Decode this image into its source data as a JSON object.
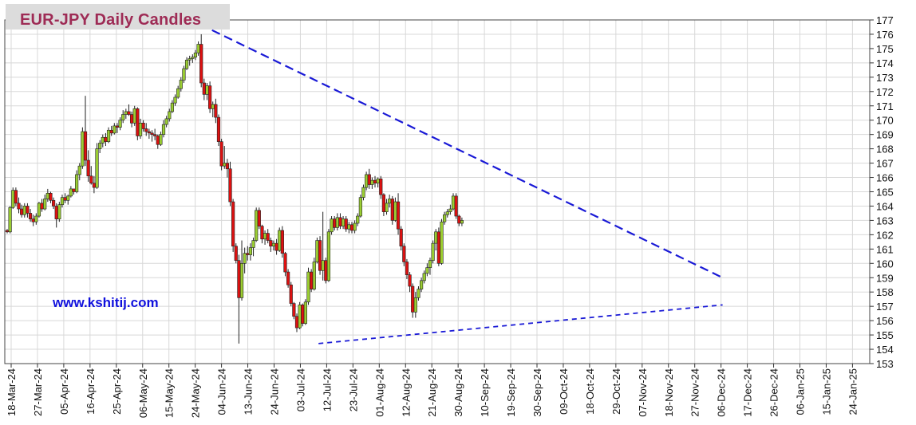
{
  "colors": {
    "title": "#9e2b55",
    "title_bg": "#dcdcdc",
    "watermark": "#1010dd",
    "up_candle": "#9acd32",
    "down_candle": "#dd1111",
    "trendline": "#1a1ad6",
    "grid": "#d8d8d8"
  },
  "chart_data": {
    "type": "candlestick",
    "title": "EUR-JPY Daily  Candles",
    "watermark": "www.kshitij.com",
    "y_axis": {
      "position": "right",
      "min": 153,
      "max": 177,
      "step": 1
    },
    "ticks_y": [
      177,
      176,
      175,
      174,
      173,
      172,
      171,
      170,
      169,
      168,
      167,
      166,
      165,
      164,
      163,
      162,
      161,
      160,
      159,
      158,
      157,
      156,
      155,
      154,
      153
    ],
    "x_axis_labels": [
      "18-Mar-24",
      "27-Mar-24",
      "05-Apr-24",
      "16-Apr-24",
      "25-Apr-24",
      "06-May-24",
      "15-May-24",
      "24-May-24",
      "04-Jun-24",
      "13-Jun-24",
      "24-Jun-24",
      "03-Jul-24",
      "12-Jul-24",
      "23-Jul-24",
      "01-Aug-24",
      "12-Aug-24",
      "21-Aug-24",
      "30-Aug-24",
      "10-Sep-24",
      "19-Sep-24",
      "30-Sep-24",
      "09-Oct-24",
      "18-Oct-24",
      "29-Oct-24",
      "07-Nov-24",
      "18-Nov-24",
      "27-Nov-24",
      "06-Dec-24",
      "17-Dec-24",
      "26-Dec-24",
      "06-Jan-25",
      "15-Jan-25",
      "24-Jan-25"
    ],
    "grid": true,
    "trendlines": [
      {
        "name": "resistance",
        "style": "dashed",
        "start": {
          "x": 66.5,
          "y": 176.7
        },
        "end": {
          "x": 247,
          "y": 159.0
        }
      },
      {
        "name": "support",
        "style": "dashed",
        "start": {
          "x": 107.5,
          "y": 154.4
        },
        "end": {
          "x": 247,
          "y": 157.1
        }
      }
    ],
    "candles": [
      [
        162.3,
        162.4,
        162.1,
        162.2
      ],
      [
        162.2,
        164.0,
        162.1,
        163.9
      ],
      [
        163.9,
        165.3,
        163.8,
        165.1
      ],
      [
        165.1,
        165.3,
        164.0,
        164.2
      ],
      [
        164.2,
        164.6,
        163.5,
        163.8
      ],
      [
        163.8,
        164.1,
        163.2,
        163.4
      ],
      [
        163.4,
        164.2,
        163.2,
        164.0
      ],
      [
        164.0,
        164.2,
        163.2,
        163.5
      ],
      [
        163.5,
        163.8,
        162.9,
        163.1
      ],
      [
        163.1,
        163.4,
        162.6,
        162.9
      ],
      [
        162.9,
        163.5,
        162.7,
        163.3
      ],
      [
        163.3,
        164.3,
        163.2,
        164.2
      ],
      [
        164.2,
        164.5,
        163.6,
        163.8
      ],
      [
        163.8,
        164.8,
        163.7,
        164.5
      ],
      [
        164.5,
        165.2,
        164.3,
        164.9
      ],
      [
        164.9,
        165.0,
        164.2,
        164.4
      ],
      [
        164.4,
        164.6,
        163.8,
        164.0
      ],
      [
        164.0,
        164.2,
        162.5,
        163.1
      ],
      [
        163.1,
        164.3,
        162.9,
        164.1
      ],
      [
        164.1,
        164.8,
        163.9,
        164.6
      ],
      [
        164.6,
        164.9,
        164.2,
        164.4
      ],
      [
        164.4,
        164.8,
        164.1,
        164.7
      ],
      [
        164.7,
        165.4,
        164.6,
        165.2
      ],
      [
        165.2,
        165.2,
        164.8,
        165.0
      ],
      [
        165.0,
        166.5,
        164.9,
        166.2
      ],
      [
        166.2,
        167.0,
        165.8,
        166.8
      ],
      [
        166.8,
        169.5,
        166.6,
        169.2
      ],
      [
        169.2,
        171.7,
        166.8,
        167.2
      ],
      [
        167.2,
        167.9,
        165.7,
        166.1
      ],
      [
        166.1,
        166.8,
        165.5,
        165.6
      ],
      [
        165.6,
        166.1,
        164.9,
        165.3
      ],
      [
        165.3,
        168.4,
        165.2,
        168.0
      ],
      [
        168.0,
        168.6,
        167.7,
        168.4
      ],
      [
        168.4,
        169.0,
        168.1,
        168.8
      ],
      [
        168.8,
        169.1,
        168.2,
        168.5
      ],
      [
        168.5,
        169.5,
        168.4,
        169.3
      ],
      [
        169.3,
        169.6,
        168.9,
        169.1
      ],
      [
        169.1,
        169.8,
        169.0,
        169.6
      ],
      [
        169.6,
        169.8,
        169.1,
        169.5
      ],
      [
        169.5,
        170.2,
        169.3,
        170.0
      ],
      [
        170.0,
        170.7,
        169.8,
        170.4
      ],
      [
        170.4,
        170.8,
        170.1,
        170.6
      ],
      [
        170.6,
        171.1,
        170.3,
        170.4
      ],
      [
        170.4,
        170.6,
        169.5,
        169.8
      ],
      [
        169.8,
        171.0,
        169.6,
        170.8
      ],
      [
        170.8,
        170.9,
        168.6,
        168.9
      ],
      [
        168.9,
        170.1,
        168.7,
        169.8
      ],
      [
        169.8,
        170.0,
        169.2,
        169.4
      ],
      [
        169.4,
        169.8,
        168.9,
        169.2
      ],
      [
        169.2,
        169.4,
        168.7,
        169.1
      ],
      [
        169.1,
        169.3,
        168.5,
        169.0
      ],
      [
        169.0,
        169.4,
        168.6,
        168.9
      ],
      [
        168.9,
        169.0,
        168.0,
        168.3
      ],
      [
        168.3,
        169.2,
        168.2,
        169.0
      ],
      [
        169.0,
        170.0,
        168.8,
        169.7
      ],
      [
        169.7,
        170.3,
        169.5,
        170.1
      ],
      [
        170.1,
        170.8,
        169.9,
        170.6
      ],
      [
        170.6,
        171.4,
        170.5,
        171.2
      ],
      [
        171.2,
        171.8,
        171.0,
        171.6
      ],
      [
        171.6,
        172.4,
        171.5,
        172.2
      ],
      [
        172.2,
        173.0,
        172.0,
        172.8
      ],
      [
        172.8,
        173.8,
        172.6,
        173.6
      ],
      [
        173.6,
        174.4,
        173.5,
        174.2
      ],
      [
        174.2,
        174.5,
        173.8,
        174.3
      ],
      [
        174.3,
        174.6,
        174.0,
        174.4
      ],
      [
        174.4,
        174.9,
        174.2,
        174.7
      ],
      [
        174.7,
        175.5,
        174.5,
        175.3
      ],
      [
        175.3,
        176.0,
        172.3,
        172.6
      ],
      [
        172.6,
        172.9,
        171.4,
        171.8
      ],
      [
        171.8,
        172.6,
        171.4,
        172.4
      ],
      [
        172.4,
        172.7,
        170.5,
        170.8
      ],
      [
        170.8,
        171.3,
        170.2,
        171.1
      ],
      [
        171.1,
        171.5,
        169.8,
        170.2
      ],
      [
        170.2,
        170.4,
        168.2,
        168.5
      ],
      [
        168.5,
        168.7,
        166.5,
        166.8
      ],
      [
        166.8,
        168.2,
        166.6,
        167.0
      ],
      [
        167.0,
        167.3,
        166.0,
        166.6
      ],
      [
        166.6,
        167.1,
        164.0,
        164.3
      ],
      [
        164.3,
        164.5,
        160.8,
        161.2
      ],
      [
        161.2,
        161.4,
        160.0,
        160.2
      ],
      [
        160.2,
        160.6,
        154.4,
        157.6
      ],
      [
        157.6,
        161.6,
        157.4,
        160.0
      ],
      [
        160.0,
        161.1,
        159.3,
        160.7
      ],
      [
        160.7,
        161.2,
        160.2,
        160.6
      ],
      [
        160.6,
        161.4,
        160.2,
        161.1
      ],
      [
        161.1,
        161.8,
        160.5,
        161.6
      ],
      [
        161.6,
        163.9,
        161.5,
        163.7
      ],
      [
        163.7,
        163.9,
        162.4,
        162.6
      ],
      [
        162.6,
        162.7,
        161.4,
        161.7
      ],
      [
        161.7,
        162.3,
        161.3,
        162.1
      ],
      [
        162.1,
        162.4,
        161.4,
        161.6
      ],
      [
        161.6,
        161.8,
        160.8,
        161.2
      ],
      [
        161.2,
        161.6,
        160.9,
        161.4
      ],
      [
        161.4,
        161.7,
        160.6,
        160.9
      ],
      [
        160.9,
        162.5,
        160.8,
        162.3
      ],
      [
        162.3,
        162.6,
        160.4,
        160.7
      ],
      [
        160.7,
        160.8,
        159.1,
        159.4
      ],
      [
        159.4,
        159.6,
        158.3,
        158.5
      ],
      [
        158.5,
        158.7,
        157.0,
        157.2
      ],
      [
        157.2,
        157.3,
        156.1,
        156.3
      ],
      [
        156.3,
        156.5,
        155.2,
        155.5
      ],
      [
        155.5,
        157.3,
        155.4,
        157.1
      ],
      [
        157.1,
        157.2,
        155.6,
        155.8
      ],
      [
        155.8,
        157.5,
        155.7,
        157.3
      ],
      [
        157.3,
        159.7,
        157.1,
        159.4
      ],
      [
        159.4,
        159.6,
        158.0,
        158.2
      ],
      [
        158.2,
        160.4,
        158.1,
        160.1
      ],
      [
        160.1,
        161.8,
        160.0,
        161.6
      ],
      [
        161.6,
        161.9,
        159.2,
        159.5
      ],
      [
        159.5,
        163.6,
        158.8,
        160.2
      ],
      [
        160.2,
        160.4,
        158.6,
        158.8
      ],
      [
        158.8,
        162.4,
        158.7,
        162.2
      ],
      [
        162.2,
        163.3,
        162.0,
        163.1
      ],
      [
        163.1,
        163.3,
        162.3,
        162.5
      ],
      [
        162.5,
        163.5,
        162.3,
        163.2
      ],
      [
        163.2,
        163.5,
        162.4,
        162.6
      ],
      [
        162.6,
        163.3,
        162.4,
        163.1
      ],
      [
        163.1,
        163.3,
        162.2,
        162.4
      ],
      [
        162.4,
        162.9,
        162.1,
        162.7
      ],
      [
        162.7,
        162.9,
        162.1,
        162.3
      ],
      [
        162.3,
        163.0,
        162.1,
        162.8
      ],
      [
        162.8,
        163.5,
        162.6,
        163.3
      ],
      [
        163.3,
        164.8,
        163.2,
        164.6
      ],
      [
        164.6,
        165.5,
        164.4,
        165.3
      ],
      [
        165.3,
        166.4,
        165.1,
        166.2
      ],
      [
        166.2,
        166.6,
        165.2,
        165.5
      ],
      [
        165.5,
        166.0,
        165.2,
        165.8
      ],
      [
        165.8,
        166.1,
        165.3,
        165.6
      ],
      [
        165.6,
        166.0,
        165.3,
        165.9
      ],
      [
        165.9,
        166.1,
        164.5,
        164.8
      ],
      [
        164.8,
        164.9,
        163.3,
        163.6
      ],
      [
        163.6,
        164.5,
        163.4,
        164.2
      ],
      [
        164.2,
        164.8,
        163.9,
        164.5
      ],
      [
        164.5,
        164.7,
        162.7,
        163.0
      ],
      [
        163.0,
        164.6,
        162.9,
        164.3
      ],
      [
        164.3,
        164.9,
        162.0,
        162.4
      ],
      [
        162.4,
        162.6,
        160.9,
        161.2
      ],
      [
        161.2,
        161.4,
        159.8,
        160.1
      ],
      [
        160.1,
        160.3,
        158.9,
        159.2
      ],
      [
        159.2,
        159.4,
        158.0,
        158.4
      ],
      [
        158.4,
        158.6,
        156.2,
        156.6
      ],
      [
        156.6,
        158.0,
        156.2,
        157.6
      ],
      [
        157.6,
        158.4,
        157.4,
        158.2
      ],
      [
        158.2,
        159.0,
        158.0,
        158.8
      ],
      [
        158.8,
        159.5,
        158.6,
        159.3
      ],
      [
        159.3,
        160.0,
        159.1,
        159.7
      ],
      [
        159.7,
        160.4,
        159.2,
        160.2
      ],
      [
        160.2,
        161.6,
        160.0,
        161.4
      ],
      [
        161.4,
        162.4,
        160.9,
        162.2
      ],
      [
        162.2,
        162.5,
        159.8,
        160.0
      ],
      [
        160.0,
        163.1,
        159.9,
        162.9
      ],
      [
        162.9,
        163.6,
        162.7,
        163.4
      ],
      [
        163.4,
        163.8,
        163.2,
        163.6
      ],
      [
        163.6,
        164.1,
        163.4,
        163.8
      ],
      [
        163.8,
        164.9,
        163.7,
        164.7
      ],
      [
        164.7,
        164.9,
        163.1,
        163.3
      ],
      [
        163.3,
        163.4,
        162.6,
        162.8
      ],
      [
        162.8,
        163.2,
        162.6,
        163.0
      ]
    ]
  }
}
